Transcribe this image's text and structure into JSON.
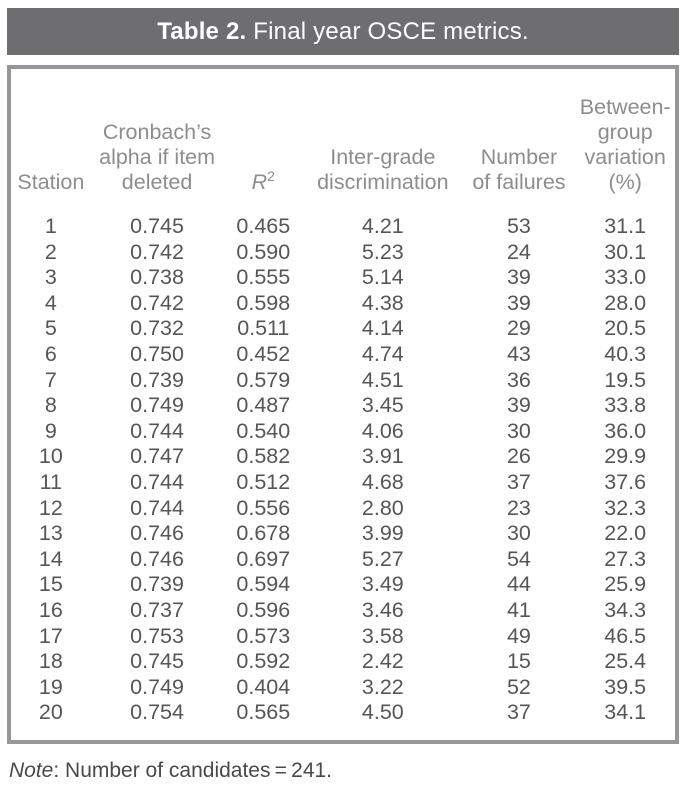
{
  "title": {
    "label_bold": "Table 2.",
    "label_rest": " Final year OSCE metrics."
  },
  "columns": {
    "station": "Station",
    "alpha": "Cronbach’s\nalpha if item\ndeleted",
    "r2_base": "R",
    "r2_sup": "2",
    "discrimination": "Inter-grade\ndiscrimination",
    "failures": "Number\nof failures",
    "variation": "Between-\ngroup\nvariation\n(%)"
  },
  "rows": [
    {
      "station": "1",
      "alpha": "0.745",
      "r2": "0.465",
      "discrimination": "4.21",
      "failures": "53",
      "variation": "31.1"
    },
    {
      "station": "2",
      "alpha": "0.742",
      "r2": "0.590",
      "discrimination": "5.23",
      "failures": "24",
      "variation": "30.1"
    },
    {
      "station": "3",
      "alpha": "0.738",
      "r2": "0.555",
      "discrimination": "5.14",
      "failures": "39",
      "variation": "33.0"
    },
    {
      "station": "4",
      "alpha": "0.742",
      "r2": "0.598",
      "discrimination": "4.38",
      "failures": "39",
      "variation": "28.0"
    },
    {
      "station": "5",
      "alpha": "0.732",
      "r2": "0.511",
      "discrimination": "4.14",
      "failures": "29",
      "variation": "20.5"
    },
    {
      "station": "6",
      "alpha": "0.750",
      "r2": "0.452",
      "discrimination": "4.74",
      "failures": "43",
      "variation": "40.3"
    },
    {
      "station": "7",
      "alpha": "0.739",
      "r2": "0.579",
      "discrimination": "4.51",
      "failures": "36",
      "variation": "19.5"
    },
    {
      "station": "8",
      "alpha": "0.749",
      "r2": "0.487",
      "discrimination": "3.45",
      "failures": "39",
      "variation": "33.8"
    },
    {
      "station": "9",
      "alpha": "0.744",
      "r2": "0.540",
      "discrimination": "4.06",
      "failures": "30",
      "variation": "36.0"
    },
    {
      "station": "10",
      "alpha": "0.747",
      "r2": "0.582",
      "discrimination": "3.91",
      "failures": "26",
      "variation": "29.9"
    },
    {
      "station": "11",
      "alpha": "0.744",
      "r2": "0.512",
      "discrimination": "4.68",
      "failures": "37",
      "variation": "37.6"
    },
    {
      "station": "12",
      "alpha": "0.744",
      "r2": "0.556",
      "discrimination": "2.80",
      "failures": "23",
      "variation": "32.3"
    },
    {
      "station": "13",
      "alpha": "0.746",
      "r2": "0.678",
      "discrimination": "3.99",
      "failures": "30",
      "variation": "22.0"
    },
    {
      "station": "14",
      "alpha": "0.746",
      "r2": "0.697",
      "discrimination": "5.27",
      "failures": "54",
      "variation": "27.3"
    },
    {
      "station": "15",
      "alpha": "0.739",
      "r2": "0.594",
      "discrimination": "3.49",
      "failures": "44",
      "variation": "25.9"
    },
    {
      "station": "16",
      "alpha": "0.737",
      "r2": "0.596",
      "discrimination": "3.46",
      "failures": "41",
      "variation": "34.3"
    },
    {
      "station": "17",
      "alpha": "0.753",
      "r2": "0.573",
      "discrimination": "3.58",
      "failures": "49",
      "variation": "46.5"
    },
    {
      "station": "18",
      "alpha": "0.745",
      "r2": "0.592",
      "discrimination": "2.42",
      "failures": "15",
      "variation": "25.4"
    },
    {
      "station": "19",
      "alpha": "0.749",
      "r2": "0.404",
      "discrimination": "3.22",
      "failures": "52",
      "variation": "39.5"
    },
    {
      "station": "20",
      "alpha": "0.754",
      "r2": "0.565",
      "discrimination": "4.50",
      "failures": "37",
      "variation": "34.1"
    }
  ],
  "note": {
    "prefix": "Note",
    "text": ": Number of candidates = 241."
  },
  "colors": {
    "title_bar": "#6e6e70",
    "table_border": "#97979b",
    "header_text": "#8d8d8f",
    "body_text": "#565659"
  }
}
